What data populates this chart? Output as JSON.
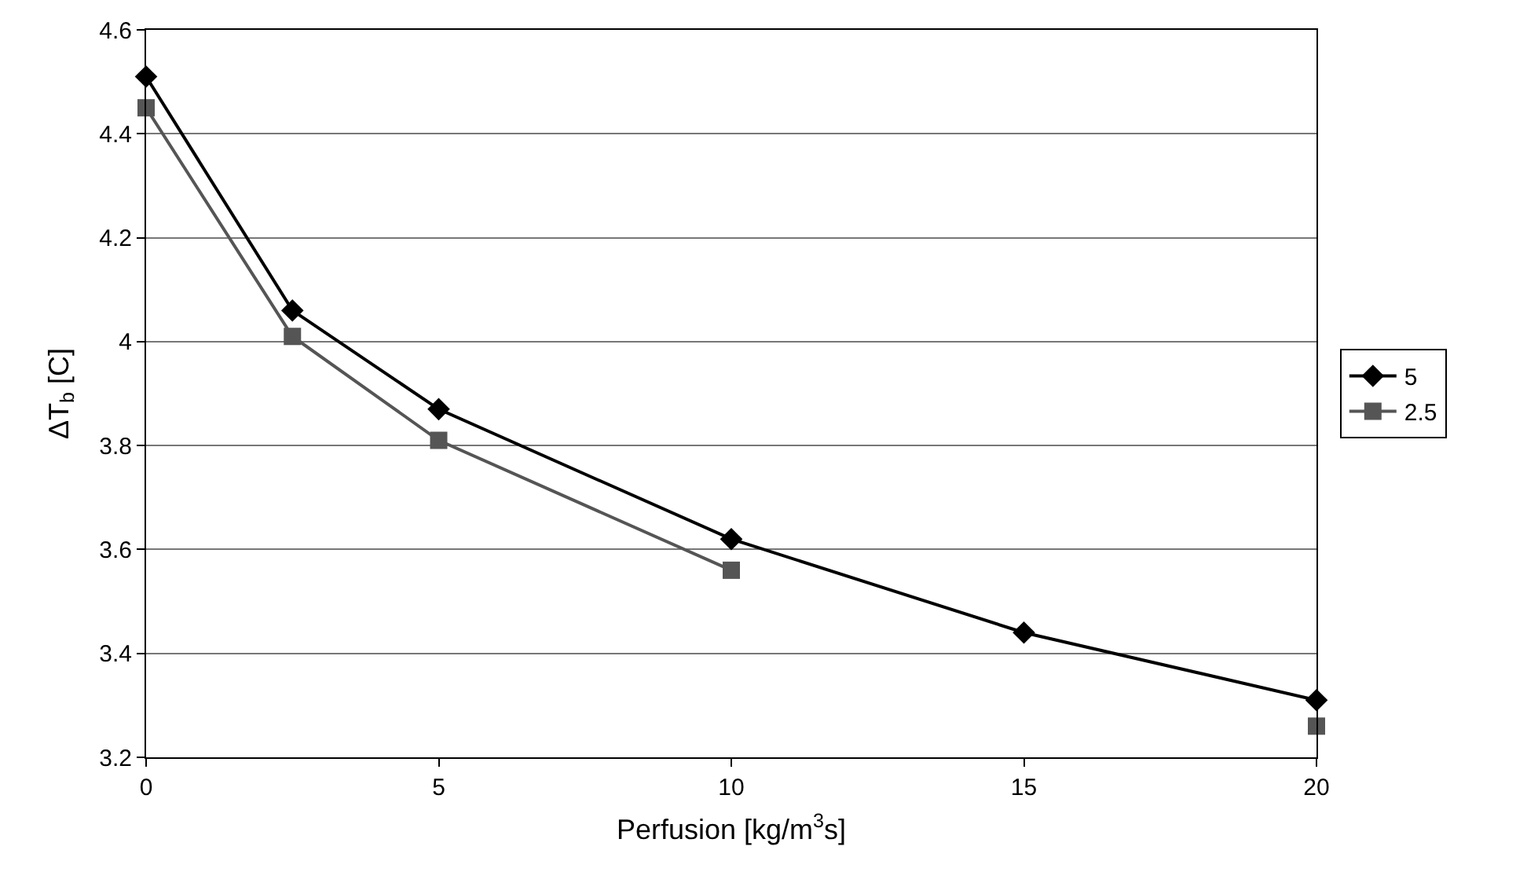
{
  "chart_data": {
    "type": "line",
    "xlabel": "Perfusion [kg/m$^{3}$s]",
    "ylabel": "ΔT$_{b}$ [C]",
    "x": [
      0,
      2.5,
      5,
      10,
      15,
      20
    ],
    "series": [
      {
        "name": "5",
        "color": "#000000",
        "marker": "diamond",
        "values": [
          4.51,
          4.06,
          3.87,
          3.62,
          3.44,
          3.31
        ]
      },
      {
        "name": "2.5",
        "color": "#555555",
        "marker": "square",
        "values": [
          4.45,
          4.01,
          3.81,
          3.56,
          null,
          3.26
        ]
      }
    ],
    "xlim": [
      0,
      20
    ],
    "xticks": [
      0,
      5,
      10,
      15,
      20
    ],
    "ylim": [
      3.2,
      4.6
    ],
    "yticks": [
      3.2,
      3.4,
      3.6,
      3.8,
      4,
      4.2,
      4.4,
      4.6
    ],
    "grid": "y",
    "legend": "right",
    "line_style": "solid"
  }
}
